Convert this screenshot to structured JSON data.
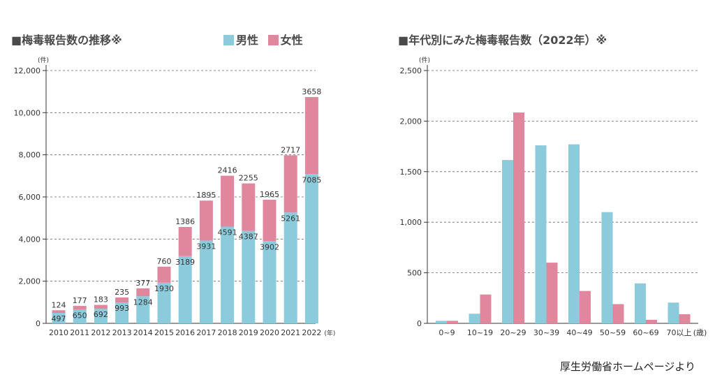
{
  "colors": {
    "male": "#8ccbdc",
    "female": "#e0879e",
    "grid": "#666666",
    "axis": "#333333"
  },
  "source": "厚生労働省ホームページより",
  "chart_data": [
    {
      "type": "bar",
      "stacked": true,
      "title": "■梅毒報告数の推移※",
      "legend": [
        {
          "label": "男性",
          "color": "#8ccbdc"
        },
        {
          "label": "女性",
          "color": "#e0879e"
        }
      ],
      "legend_position": "top-right",
      "y_unit": "(件)",
      "x_unit": "(年)",
      "ylim": [
        0,
        12000
      ],
      "yticks": [
        0,
        2000,
        4000,
        6000,
        8000,
        10000,
        12000
      ],
      "ytick_labels": [
        "0",
        "2,000",
        "4,000",
        "6,000",
        "8,000",
        "10,000",
        "12,000"
      ],
      "grid": "horizontal-dashed",
      "categories": [
        "2010",
        "2011",
        "2012",
        "2013",
        "2014",
        "2015",
        "2016",
        "2017",
        "2018",
        "2019",
        "2020",
        "2021",
        "2022"
      ],
      "series": [
        {
          "name": "男性",
          "values": [
            497,
            650,
            692,
            993,
            1284,
            1930,
            3189,
            3931,
            4591,
            4387,
            3902,
            5261,
            7085
          ]
        },
        {
          "name": "女性",
          "values": [
            124,
            177,
            183,
            235,
            377,
            760,
            1386,
            1895,
            2416,
            2255,
            1965,
            2717,
            3658
          ]
        }
      ]
    },
    {
      "type": "bar",
      "stacked": false,
      "title": "■年代別にみた梅毒報告数（2022年）※",
      "y_unit": "(件)",
      "x_unit": "(歳)",
      "ylim": [
        0,
        2500
      ],
      "yticks": [
        0,
        500,
        1000,
        1500,
        2000,
        2500
      ],
      "ytick_labels": [
        "0",
        "500",
        "1,000",
        "1,500",
        "2,000",
        "2,500"
      ],
      "grid": "horizontal-dashed",
      "categories": [
        "0~9",
        "10~19",
        "20~29",
        "30~39",
        "40~49",
        "50~59",
        "60~69",
        "70以上"
      ],
      "series": [
        {
          "name": "男性",
          "values": [
            25,
            95,
            1615,
            1760,
            1770,
            1100,
            395,
            205
          ]
        },
        {
          "name": "女性",
          "values": [
            25,
            285,
            2085,
            600,
            320,
            190,
            35,
            90
          ]
        }
      ]
    }
  ]
}
